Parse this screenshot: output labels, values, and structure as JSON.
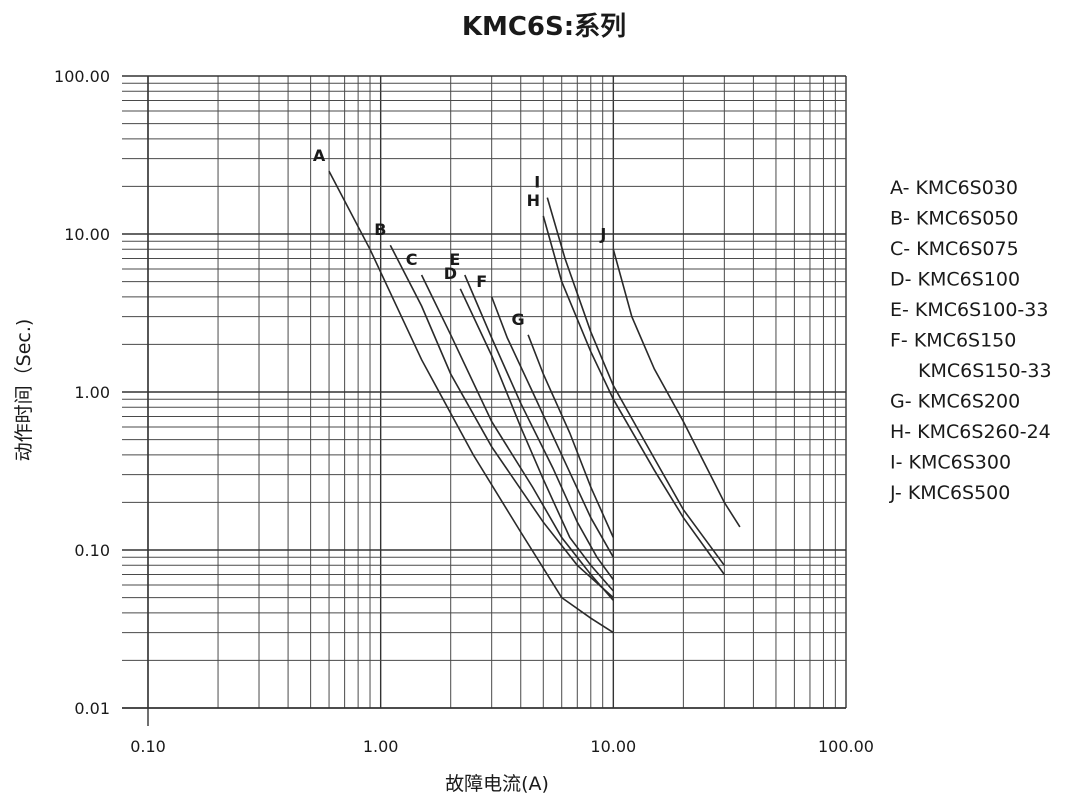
{
  "chart_data": {
    "type": "line",
    "title": "KMC6S:系列",
    "xlabel": "故障电流(A)",
    "ylabel": "动作时间（Sec.)",
    "x_scale": "log",
    "y_scale": "log",
    "xlim": [
      0.1,
      100
    ],
    "ylim": [
      0.01,
      100
    ],
    "x_ticks": [
      "0.10",
      "1.00",
      "10.00",
      "100.00"
    ],
    "y_ticks": [
      "0.01",
      "0.10",
      "1.00",
      "10.00",
      "100.00"
    ],
    "grid": true,
    "legend_position": "right",
    "legend": [
      "A- KMC6S030",
      "B- KMC6S050",
      "C- KMC6S075",
      "D- KMC6S100",
      "E- KMC6S100-33",
      "F- KMC6S150",
      "KMC6S150-33",
      "G- KMC6S200",
      "H- KMC6S260-24",
      "I- KMC6S300",
      "J- KMC6S500"
    ],
    "series": [
      {
        "name": "A",
        "x": [
          0.6,
          0.9,
          1.5,
          2.5,
          4,
          6,
          8,
          10
        ],
        "y": [
          25,
          8,
          1.6,
          0.4,
          0.13,
          0.05,
          0.037,
          0.03
        ]
      },
      {
        "name": "B",
        "x": [
          1.1,
          1.5,
          2,
          3,
          5,
          7,
          10
        ],
        "y": [
          8.5,
          3.5,
          1.3,
          0.45,
          0.15,
          0.08,
          0.05
        ]
      },
      {
        "name": "C",
        "x": [
          1.5,
          2,
          3,
          4.5,
          6,
          8,
          10
        ],
        "y": [
          5.5,
          2.3,
          0.65,
          0.25,
          0.12,
          0.07,
          0.048
        ]
      },
      {
        "name": "D",
        "x": [
          2.2,
          3,
          4,
          5,
          6.5,
          8,
          10
        ],
        "y": [
          4.5,
          1.7,
          0.6,
          0.28,
          0.12,
          0.08,
          0.055
        ]
      },
      {
        "name": "E",
        "x": [
          2.3,
          3,
          4,
          5.5,
          7,
          8.5,
          10
        ],
        "y": [
          5.5,
          2.2,
          0.85,
          0.33,
          0.15,
          0.09,
          0.065
        ]
      },
      {
        "name": "F",
        "x": [
          3,
          3.5,
          4.5,
          6,
          8,
          10
        ],
        "y": [
          4,
          2.2,
          1,
          0.4,
          0.16,
          0.09
        ]
      },
      {
        "name": "G",
        "x": [
          4.3,
          5,
          6.5,
          8,
          10
        ],
        "y": [
          2.3,
          1.3,
          0.55,
          0.25,
          0.12
        ]
      },
      {
        "name": "H",
        "x": [
          5,
          6,
          8,
          10,
          15,
          20,
          30
        ],
        "y": [
          13,
          5,
          1.8,
          0.9,
          0.32,
          0.16,
          0.07
        ]
      },
      {
        "name": "I",
        "x": [
          5.2,
          6.2,
          8,
          10,
          15,
          20,
          30
        ],
        "y": [
          17,
          7,
          2.4,
          1.1,
          0.38,
          0.18,
          0.08
        ]
      },
      {
        "name": "J",
        "x": [
          10,
          12,
          15,
          20,
          30,
          35
        ],
        "y": [
          8,
          3,
          1.4,
          0.65,
          0.2,
          0.14
        ]
      }
    ]
  }
}
